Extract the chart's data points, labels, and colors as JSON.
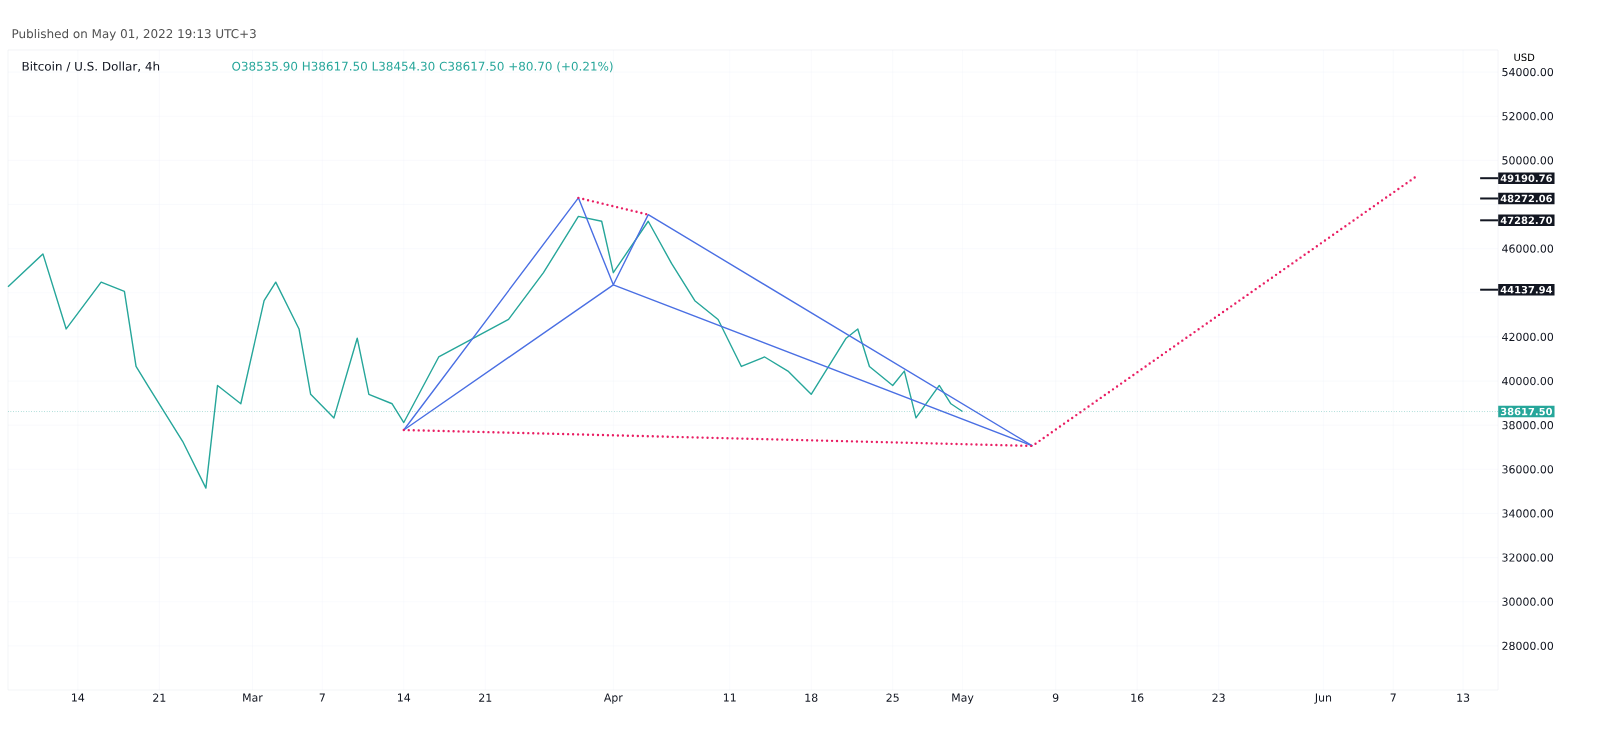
{
  "chart_data": {
    "type": "line",
    "title": "Bitcoin / U.S. Dollar, 4h",
    "ylabel": "USD",
    "annotations": [
      "Published on May 01, 2022 19:13 UTC+3",
      "O38535.90 H38617.50 L38454.30 C38617.50 +80.70 (+0.21%)"
    ],
    "xlim": [
      "2022-02-08",
      "2022-06-16"
    ],
    "xticks": [
      {
        "value": "2022-02-14",
        "label": "14"
      },
      {
        "value": "2022-02-21",
        "label": "21"
      },
      {
        "value": "2022-03-01",
        "label": "Mar"
      },
      {
        "value": "2022-03-07",
        "label": "7"
      },
      {
        "value": "2022-03-14",
        "label": "14"
      },
      {
        "value": "2022-03-21",
        "label": "21"
      },
      {
        "value": "2022-04-01",
        "label": "Apr"
      },
      {
        "value": "2022-04-11",
        "label": "11"
      },
      {
        "value": "2022-04-18",
        "label": "18"
      },
      {
        "value": "2022-04-25",
        "label": "25"
      },
      {
        "value": "2022-05-01",
        "label": "May"
      },
      {
        "value": "2022-05-09",
        "label": "9"
      },
      {
        "value": "2022-05-16",
        "label": "16"
      },
      {
        "value": "2022-05-23",
        "label": "23"
      },
      {
        "value": "2022-06-01",
        "label": "Jun"
      },
      {
        "value": "2022-06-07",
        "label": "7"
      },
      {
        "value": "2022-06-13",
        "label": "13"
      }
    ],
    "ylim": [
      26000,
      55000
    ],
    "yticks": [
      {
        "value": 28000,
        "label": "28000.00"
      },
      {
        "value": 30000,
        "label": "30000.00"
      },
      {
        "value": 32000,
        "label": "32000.00"
      },
      {
        "value": 34000,
        "label": "34000.00"
      },
      {
        "value": 36000,
        "label": "36000.00"
      },
      {
        "value": 38000,
        "label": "38000.00"
      },
      {
        "value": 40000,
        "label": "40000.00"
      },
      {
        "value": 42000,
        "label": "42000.00"
      },
      {
        "value": 44000,
        "label": null
      },
      {
        "value": 46000,
        "label": "46000.00"
      },
      {
        "value": 48000,
        "label": null
      },
      {
        "value": 50000,
        "label": "50000.00"
      },
      {
        "value": 52000,
        "label": "52000.00"
      },
      {
        "value": 54000,
        "label": "54000.00"
      }
    ],
    "grid": true,
    "marker": "none",
    "series": [
      {
        "color": "#26a69a",
        "line_style": "solid",
        "x": [
          "2022-02-08",
          "2022-02-11",
          "2022-02-13",
          "2022-02-16",
          "2022-02-18",
          "2022-02-19",
          "2022-02-20",
          "2022-02-23",
          "2022-02-25",
          "2022-02-26",
          "2022-02-28",
          "2022-03-02",
          "2022-03-03",
          "2022-03-05",
          "2022-03-06",
          "2022-03-08",
          "2022-03-10",
          "2022-03-11",
          "2022-03-13",
          "2022-03-14",
          "2022-03-17",
          "2022-03-20",
          "2022-03-23",
          "2022-03-26",
          "2022-03-29",
          "2022-03-31",
          "2022-04-01",
          "2022-04-04",
          "2022-04-06",
          "2022-04-08",
          "2022-04-10",
          "2022-04-12",
          "2022-04-14",
          "2022-04-16",
          "2022-04-18",
          "2022-04-21",
          "2022-04-22",
          "2022-04-23",
          "2022-04-25",
          "2022-04-26",
          "2022-04-27",
          "2022-04-29",
          "2022-04-30",
          "2022-05-01"
        ],
        "values": [
          44270,
          45760,
          42360,
          44480,
          44060,
          40660,
          39800,
          37270,
          35150,
          39800,
          38970,
          43640,
          44480,
          42360,
          39400,
          38330,
          41940,
          39400,
          38970,
          38120,
          41090,
          41940,
          42790,
          44910,
          47460,
          47240,
          44910,
          47240,
          45330,
          43640,
          42790,
          40660,
          41090,
          40450,
          39400,
          41940,
          42360,
          40660,
          39800,
          40450,
          38330,
          39800,
          38970,
          38617.5
        ]
      },
      {
        "color": "#4a6fe3",
        "line_style": "solid",
        "x": [
          "2022-03-14",
          "2022-03-29",
          "2022-04-01",
          "2022-04-04",
          "2022-05-07"
        ],
        "values": [
          37780,
          48300,
          44360,
          47540,
          37060
        ]
      },
      {
        "color": "#4a6fe3",
        "line_style": "solid",
        "x": [
          "2022-03-14",
          "2022-04-01",
          "2022-05-07"
        ],
        "values": [
          37780,
          44360,
          37060
        ]
      },
      {
        "color": "#e91e63",
        "line_style": "dotted",
        "x": [
          "2022-03-14",
          "2022-05-07",
          "2022-06-09"
        ],
        "values": [
          37780,
          37060,
          49280
        ]
      },
      {
        "color": "#e91e63",
        "line_style": "dotted",
        "x": [
          "2022-03-29",
          "2022-04-04"
        ],
        "values": [
          48300,
          47540
        ]
      }
    ],
    "ref_lines": [
      {
        "axis": "y",
        "value": 49190.76,
        "label": "49190.76",
        "color": "#131722"
      },
      {
        "axis": "y",
        "value": 48272.06,
        "label": "48272.06",
        "color": "#131722"
      },
      {
        "axis": "y",
        "value": 47282.7,
        "label": "47282.70",
        "color": "#131722"
      },
      {
        "axis": "y",
        "value": 44137.94,
        "label": "44137.94",
        "color": "#131722"
      },
      {
        "axis": "y",
        "value": 38617.5,
        "label": "38617.50",
        "color": "#26a69a",
        "line_style": "dotted"
      }
    ]
  }
}
